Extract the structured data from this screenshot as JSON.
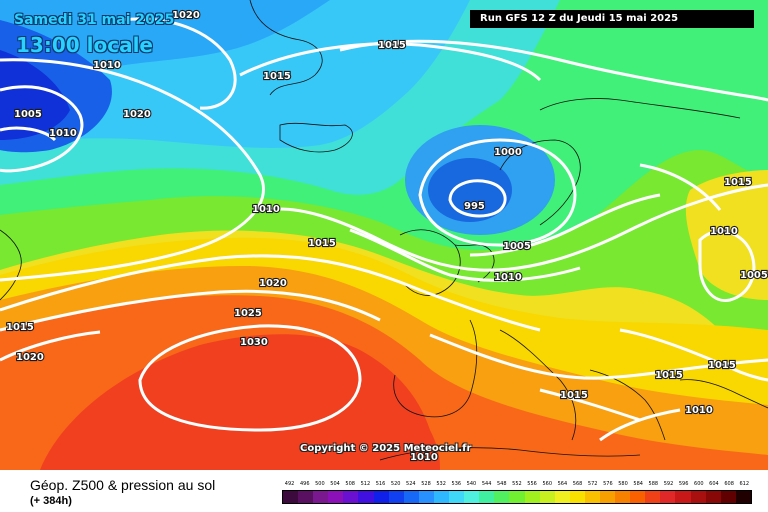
{
  "header": {
    "date": "Samedi 31 mai 2025",
    "time": "13:00 locale",
    "run": "Run GFS 12 Z du Jeudi 15 mai 2025"
  },
  "copyright": "Copyright © 2025 Meteociel.fr",
  "legend": {
    "title": "Géop. Z500 & pression au sol",
    "subtitle": "(+ 384h)",
    "scale_values": [
      "492",
      "496",
      "500",
      "504",
      "508",
      "512",
      "516",
      "520",
      "524",
      "528",
      "532",
      "536",
      "540",
      "544",
      "548",
      "552",
      "556",
      "560",
      "564",
      "568",
      "572",
      "576",
      "580",
      "584",
      "588",
      "592",
      "596",
      "600",
      "604",
      "608",
      "612"
    ],
    "scale_colors": [
      "#3c0a3c",
      "#5a1060",
      "#7a1890",
      "#8c10b8",
      "#6a10d0",
      "#4010e0",
      "#1020e8",
      "#1040f0",
      "#1868f8",
      "#2890ff",
      "#30b8ff",
      "#40d8f8",
      "#50f0e0",
      "#40f0a0",
      "#50f060",
      "#70f030",
      "#a0f020",
      "#c8f020",
      "#f0f020",
      "#f8e000",
      "#f8c000",
      "#f8a000",
      "#f88000",
      "#f86000",
      "#f04018",
      "#e02828",
      "#c81818",
      "#a81010",
      "#880808",
      "#600000",
      "#200000"
    ]
  },
  "isobars": [
    "1020",
    "1010",
    "1005",
    "1010",
    "1020",
    "1015",
    "1015",
    "1000",
    "995",
    "1010",
    "1015",
    "1005",
    "1010",
    "1020",
    "1025",
    "1030",
    "1020",
    "1015",
    "1015",
    "1010",
    "1005",
    "1015",
    "1015",
    "1015",
    "1010",
    "1010"
  ],
  "colors": {
    "line": "#ffffff",
    "banner": "#000000",
    "title_text": "#2ad0ff"
  }
}
